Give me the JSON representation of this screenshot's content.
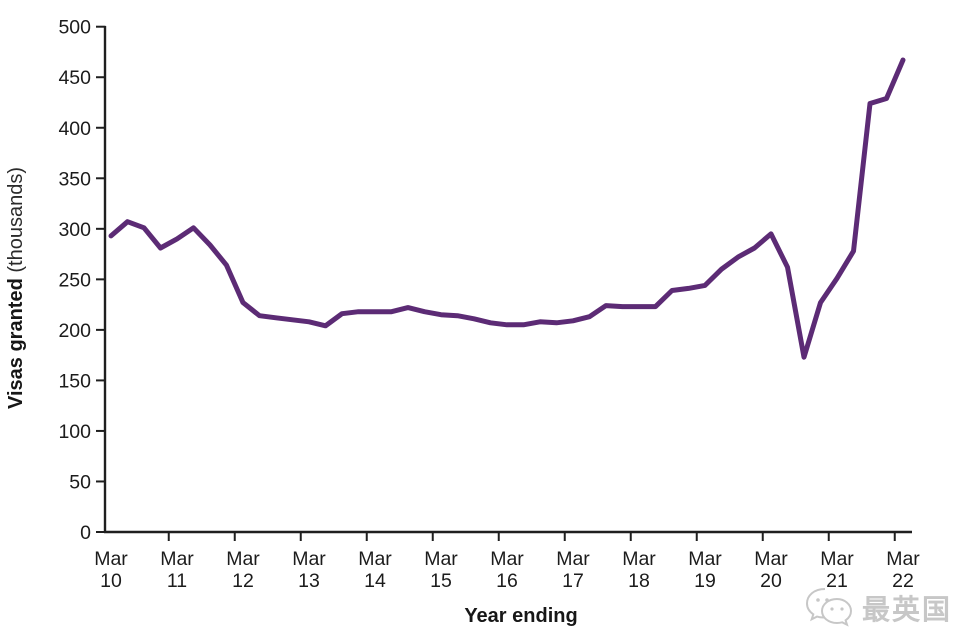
{
  "chart_data": {
    "type": "line",
    "title": "",
    "xlabel": "Year ending",
    "ylabel": "Visas granted (thousands)",
    "ylabel_bold": "Visas granted",
    "ylabel_light": "(thousands)",
    "ylim": [
      0,
      500
    ],
    "ytick_step": 50,
    "yticks": [
      0,
      50,
      100,
      150,
      200,
      250,
      300,
      350,
      400,
      450,
      500
    ],
    "x_month": "Mar",
    "x_years": [
      "10",
      "11",
      "12",
      "13",
      "14",
      "15",
      "16",
      "17",
      "18",
      "19",
      "20",
      "21",
      "22"
    ],
    "points_per_year": 4,
    "grid": false,
    "legend": "none",
    "series": [
      {
        "name": "Visas granted",
        "color": "#5C2B75",
        "values": [
          293,
          307,
          301,
          281,
          290,
          301,
          284,
          264,
          227,
          214,
          212,
          210,
          208,
          204,
          216,
          218,
          218,
          218,
          222,
          218,
          215,
          214,
          211,
          207,
          205,
          205,
          208,
          207,
          209,
          213,
          224,
          223,
          223,
          223,
          239,
          241,
          244,
          260,
          272,
          281,
          295,
          262,
          173,
          227,
          251,
          278,
          424,
          429,
          467
        ]
      }
    ]
  },
  "watermark": {
    "text": "最英国",
    "icon": "wechat-icon",
    "color": "#c7c7c7"
  }
}
